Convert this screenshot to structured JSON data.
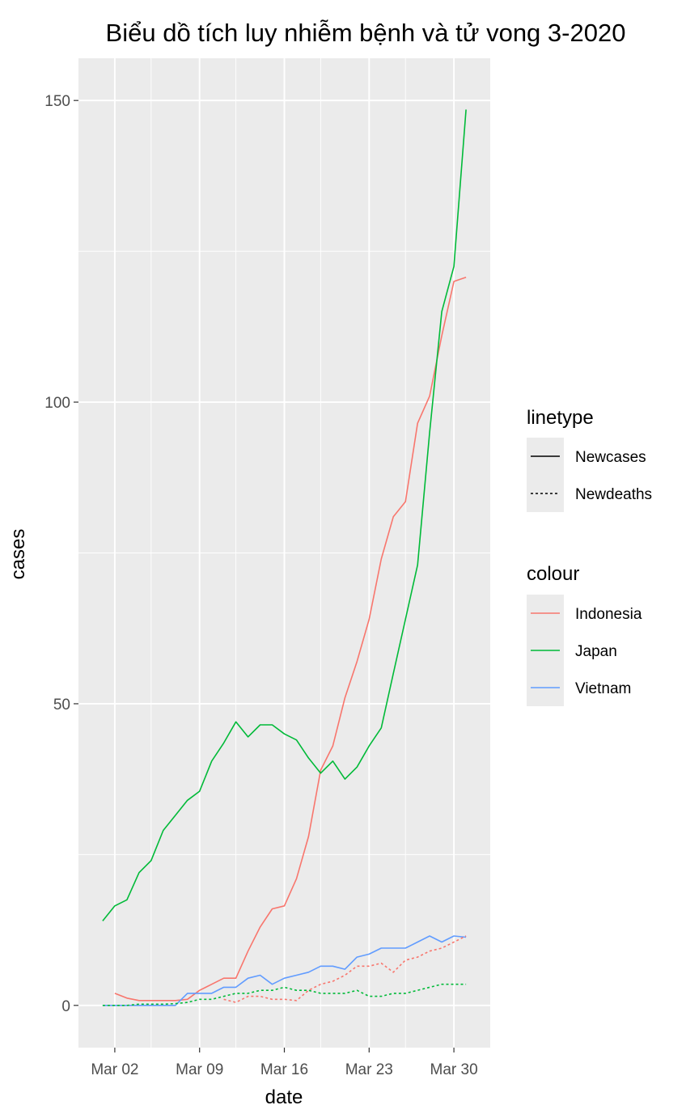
{
  "chart_data": {
    "type": "line",
    "title": "Biểu dồ tích luy nhiễm bệnh và tử vong 3-2020",
    "xlabel": "date",
    "ylabel": "cases",
    "x_ticks": [
      "Mar 02",
      "Mar 09",
      "Mar 16",
      "Mar 23",
      "Mar 30"
    ],
    "y_ticks": [
      "0",
      "50",
      "100",
      "150"
    ],
    "xlim_days": [
      "2020-02-28",
      "2020-04-02"
    ],
    "ylim": [
      -7,
      157
    ],
    "grid": true,
    "background": "#EBEBEB",
    "legend_position": "right",
    "linetype_legend": {
      "title": "linetype",
      "entries": [
        {
          "label": "Newcases",
          "dash": "solid"
        },
        {
          "label": "Newdeaths",
          "dash": "dotted"
        }
      ]
    },
    "colour_legend": {
      "title": "colour",
      "entries": [
        {
          "label": "Indonesia",
          "color": "#F8766D"
        },
        {
          "label": "Japan",
          "color": "#00BA38"
        },
        {
          "label": "Vietnam",
          "color": "#619CFF"
        }
      ]
    },
    "series": [
      {
        "name": "Indonesia",
        "linetype": "Newcases",
        "color": "#F8766D",
        "points": [
          [
            "2020-03-02",
            2
          ],
          [
            "2020-03-03",
            1.2
          ],
          [
            "2020-03-04",
            0.8
          ],
          [
            "2020-03-05",
            0.8
          ],
          [
            "2020-03-06",
            0.8
          ],
          [
            "2020-03-07",
            0.8
          ],
          [
            "2020-03-08",
            1
          ],
          [
            "2020-03-09",
            2.5
          ],
          [
            "2020-03-10",
            3.5
          ],
          [
            "2020-03-11",
            4.5
          ],
          [
            "2020-03-12",
            4.5
          ],
          [
            "2020-03-13",
            9
          ],
          [
            "2020-03-14",
            13
          ],
          [
            "2020-03-15",
            16
          ],
          [
            "2020-03-16",
            16.5
          ],
          [
            "2020-03-17",
            21
          ],
          [
            "2020-03-18",
            28
          ],
          [
            "2020-03-19",
            39
          ],
          [
            "2020-03-20",
            43
          ],
          [
            "2020-03-21",
            51
          ],
          [
            "2020-03-22",
            57
          ],
          [
            "2020-03-23",
            64
          ],
          [
            "2020-03-24",
            74
          ],
          [
            "2020-03-25",
            81
          ],
          [
            "2020-03-26",
            83.5
          ],
          [
            "2020-03-27",
            96.5
          ],
          [
            "2020-03-28",
            101
          ],
          [
            "2020-03-29",
            111
          ],
          [
            "2020-03-30",
            120
          ],
          [
            "2020-03-31",
            120.7
          ]
        ]
      },
      {
        "name": "Japan",
        "linetype": "Newcases",
        "color": "#00BA38",
        "points": [
          [
            "2020-03-01",
            14
          ],
          [
            "2020-03-02",
            16.5
          ],
          [
            "2020-03-03",
            17.5
          ],
          [
            "2020-03-04",
            22
          ],
          [
            "2020-03-05",
            24
          ],
          [
            "2020-03-06",
            29
          ],
          [
            "2020-03-07",
            31.5
          ],
          [
            "2020-03-08",
            34
          ],
          [
            "2020-03-09",
            35.5
          ],
          [
            "2020-03-10",
            40.5
          ],
          [
            "2020-03-11",
            43.5
          ],
          [
            "2020-03-12",
            47
          ],
          [
            "2020-03-13",
            44.5
          ],
          [
            "2020-03-14",
            46.5
          ],
          [
            "2020-03-15",
            46.5
          ],
          [
            "2020-03-16",
            45
          ],
          [
            "2020-03-17",
            44
          ],
          [
            "2020-03-18",
            41
          ],
          [
            "2020-03-19",
            38.5
          ],
          [
            "2020-03-20",
            40.5
          ],
          [
            "2020-03-21",
            37.5
          ],
          [
            "2020-03-22",
            39.5
          ],
          [
            "2020-03-23",
            43
          ],
          [
            "2020-03-24",
            46
          ],
          [
            "2020-03-25",
            55
          ],
          [
            "2020-03-26",
            64
          ],
          [
            "2020-03-27",
            73
          ],
          [
            "2020-03-28",
            95
          ],
          [
            "2020-03-29",
            115
          ],
          [
            "2020-03-30",
            122.5
          ],
          [
            "2020-03-31",
            148.5
          ]
        ]
      },
      {
        "name": "Vietnam",
        "linetype": "Newcases",
        "color": "#619CFF",
        "points": [
          [
            "2020-03-01",
            0
          ],
          [
            "2020-03-02",
            0
          ],
          [
            "2020-03-03",
            0
          ],
          [
            "2020-03-04",
            0
          ],
          [
            "2020-03-05",
            0
          ],
          [
            "2020-03-06",
            0
          ],
          [
            "2020-03-07",
            0
          ],
          [
            "2020-03-08",
            2
          ],
          [
            "2020-03-09",
            2
          ],
          [
            "2020-03-10",
            2
          ],
          [
            "2020-03-11",
            3
          ],
          [
            "2020-03-12",
            3
          ],
          [
            "2020-03-13",
            4.5
          ],
          [
            "2020-03-14",
            5
          ],
          [
            "2020-03-15",
            3.5
          ],
          [
            "2020-03-16",
            4.5
          ],
          [
            "2020-03-17",
            5
          ],
          [
            "2020-03-18",
            5.5
          ],
          [
            "2020-03-19",
            6.5
          ],
          [
            "2020-03-20",
            6.5
          ],
          [
            "2020-03-21",
            6
          ],
          [
            "2020-03-22",
            8
          ],
          [
            "2020-03-23",
            8.5
          ],
          [
            "2020-03-24",
            9.5
          ],
          [
            "2020-03-25",
            9.5
          ],
          [
            "2020-03-26",
            9.5
          ],
          [
            "2020-03-27",
            10.5
          ],
          [
            "2020-03-28",
            11.5
          ],
          [
            "2020-03-29",
            10.5
          ],
          [
            "2020-03-30",
            11.5
          ],
          [
            "2020-03-31",
            11.3
          ]
        ]
      },
      {
        "name": "Indonesia",
        "linetype": "Newdeaths",
        "color": "#F8766D",
        "points": [
          [
            "2020-03-11",
            1
          ],
          [
            "2020-03-12",
            0.5
          ],
          [
            "2020-03-13",
            1.5
          ],
          [
            "2020-03-14",
            1.5
          ],
          [
            "2020-03-15",
            1
          ],
          [
            "2020-03-16",
            1
          ],
          [
            "2020-03-17",
            0.8
          ],
          [
            "2020-03-18",
            2.5
          ],
          [
            "2020-03-19",
            3.5
          ],
          [
            "2020-03-20",
            4
          ],
          [
            "2020-03-21",
            5
          ],
          [
            "2020-03-22",
            6.5
          ],
          [
            "2020-03-23",
            6.5
          ],
          [
            "2020-03-24",
            7
          ],
          [
            "2020-03-25",
            5.5
          ],
          [
            "2020-03-26",
            7.5
          ],
          [
            "2020-03-27",
            8
          ],
          [
            "2020-03-28",
            9
          ],
          [
            "2020-03-29",
            9.5
          ],
          [
            "2020-03-30",
            10.5
          ],
          [
            "2020-03-31",
            11.5
          ]
        ]
      },
      {
        "name": "Japan",
        "linetype": "Newdeaths",
        "color": "#00BA38",
        "points": [
          [
            "2020-03-01",
            0
          ],
          [
            "2020-03-02",
            0
          ],
          [
            "2020-03-03",
            0
          ],
          [
            "2020-03-04",
            0.2
          ],
          [
            "2020-03-05",
            0.2
          ],
          [
            "2020-03-06",
            0.2
          ],
          [
            "2020-03-07",
            0.3
          ],
          [
            "2020-03-08",
            0.5
          ],
          [
            "2020-03-09",
            1
          ],
          [
            "2020-03-10",
            1
          ],
          [
            "2020-03-11",
            1.5
          ],
          [
            "2020-03-12",
            2
          ],
          [
            "2020-03-13",
            2
          ],
          [
            "2020-03-14",
            2.5
          ],
          [
            "2020-03-15",
            2.5
          ],
          [
            "2020-03-16",
            3
          ],
          [
            "2020-03-17",
            2.5
          ],
          [
            "2020-03-18",
            2.5
          ],
          [
            "2020-03-19",
            2
          ],
          [
            "2020-03-20",
            2
          ],
          [
            "2020-03-21",
            2
          ],
          [
            "2020-03-22",
            2.5
          ],
          [
            "2020-03-23",
            1.5
          ],
          [
            "2020-03-24",
            1.5
          ],
          [
            "2020-03-25",
            2
          ],
          [
            "2020-03-26",
            2
          ],
          [
            "2020-03-27",
            2.5
          ],
          [
            "2020-03-28",
            3
          ],
          [
            "2020-03-29",
            3.5
          ],
          [
            "2020-03-30",
            3.5
          ],
          [
            "2020-03-31",
            3.5
          ]
        ]
      }
    ]
  }
}
